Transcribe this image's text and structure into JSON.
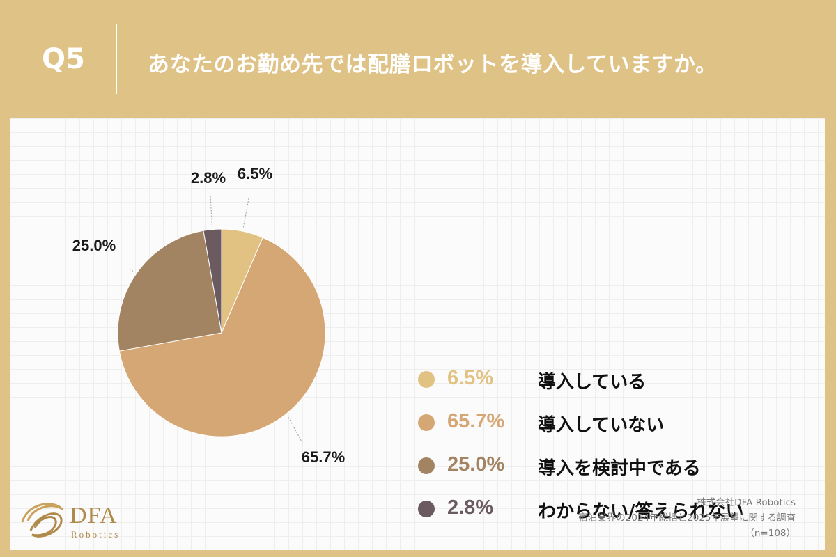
{
  "header": {
    "question_number": "Q5",
    "question_text": "あなたのお勤め先では配膳ロボットを導入していますか。"
  },
  "chart_data": {
    "type": "pie",
    "title": "あなたのお勤め先では配膳ロボットを導入していますか。",
    "slices": [
      {
        "label": "導入している",
        "value": 6.5,
        "value_text": "6.5%",
        "color": "#e1c283",
        "legend_text_color": "#e1c283"
      },
      {
        "label": "導入していない",
        "value": 65.7,
        "value_text": "65.7%",
        "color": "#d5a774",
        "legend_text_color": "#d5a774"
      },
      {
        "label": "導入を検討中である",
        "value": 25.0,
        "value_text": "25.0%",
        "color": "#a38462",
        "legend_text_color": "#a38462"
      },
      {
        "label": "わからない/答えられない",
        "value": 2.8,
        "value_text": "2.8%",
        "color": "#6b5a5f",
        "legend_text_color": "#6b5a5f"
      }
    ],
    "start_angle": "12 o'clock",
    "direction": "clockwise",
    "legend_position": "right"
  },
  "footer": {
    "logo_text": "DFA",
    "logo_subtext": "Robotics",
    "company": "株式会社DFA Robotics",
    "survey": "宿泊業界の2024年総括と2025年展望に関する調査",
    "sample": "（n=108）"
  }
}
